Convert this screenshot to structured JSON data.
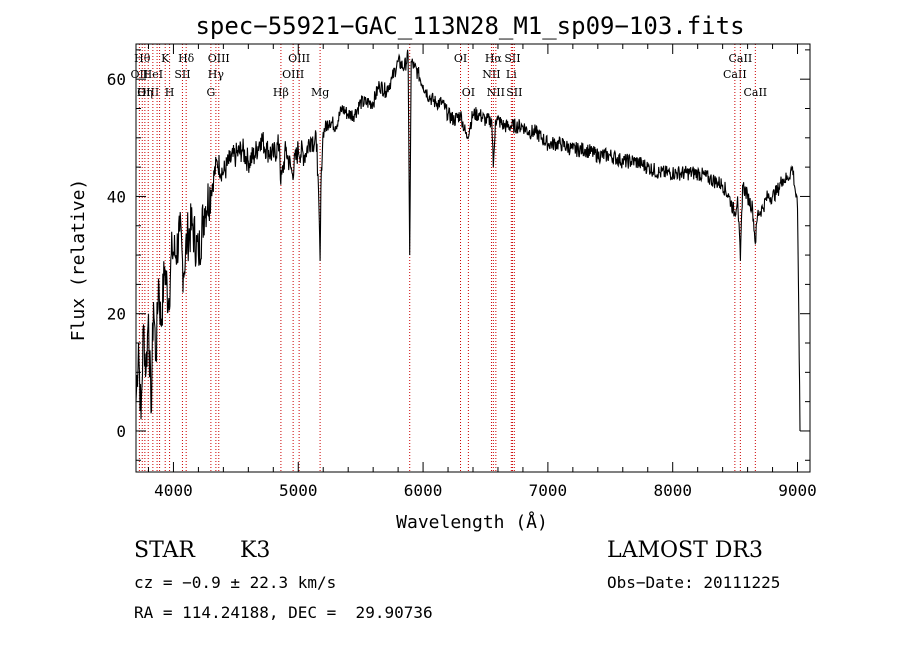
{
  "chart_data": {
    "type": "line",
    "title": "spec−55921−GAC_113N28_M1_sp09−103.fits",
    "xlabel": "Wavelength (Å)",
    "ylabel": "Flux (relative)",
    "xlim": [
      3700,
      9100
    ],
    "ylim": [
      -7,
      66
    ],
    "xticks": [
      4000,
      5000,
      6000,
      7000,
      8000,
      9000
    ],
    "yticks": [
      0,
      20,
      40,
      60
    ],
    "grid": false,
    "line_color": "#000000",
    "marker_color": "#cc0000",
    "series": [
      {
        "x": [
          3700,
          3720,
          3740,
          3760,
          3780,
          3800,
          3820,
          3840,
          3860,
          3880,
          3900,
          3930,
          3960,
          3990,
          4020,
          4050,
          4080,
          4110,
          4150,
          4200,
          4250,
          4300,
          4350,
          4400,
          4450,
          4500,
          4550,
          4600,
          4650,
          4700,
          4750,
          4800,
          4850,
          4860,
          4900,
          4950,
          5000,
          5050,
          5100,
          5150,
          5175,
          5185,
          5200,
          5250,
          5300,
          5350,
          5400,
          5450,
          5500,
          5550,
          5600,
          5650,
          5700,
          5750,
          5800,
          5850,
          5880,
          5893,
          5905,
          5930,
          5960,
          6000,
          6050,
          6100,
          6150,
          6200,
          6250,
          6300,
          6350,
          6400,
          6450,
          6500,
          6550,
          6563,
          6580,
          6600,
          6650,
          6700,
          6750,
          6800,
          6850,
          6900,
          6950,
          7000,
          7100,
          7200,
          7300,
          7400,
          7500,
          7600,
          7700,
          7800,
          7900,
          8000,
          8100,
          8200,
          8300,
          8400,
          8450,
          8498,
          8520,
          8542,
          8560,
          8600,
          8640,
          8662,
          8680,
          8720,
          8760,
          8800,
          8840,
          8880,
          8920,
          8960,
          9000,
          9010,
          9020
        ],
        "y": [
          5,
          15,
          2,
          18,
          10,
          20,
          3,
          22,
          12,
          26,
          18,
          28,
          22,
          31,
          30,
          34,
          27,
          33,
          35,
          30,
          38,
          41,
          46,
          44,
          46,
          47,
          48,
          46,
          47,
          50,
          48,
          47,
          49,
          42,
          48,
          44,
          48,
          47,
          50,
          49,
          29,
          45,
          51,
          53,
          52,
          55,
          54,
          54,
          56,
          56,
          56,
          59,
          58,
          60,
          63,
          62,
          64,
          30,
          63,
          62,
          61,
          59,
          57,
          56,
          56,
          54,
          53,
          54,
          50,
          54,
          54,
          53,
          53,
          45,
          53,
          53,
          52,
          52,
          52,
          52,
          51,
          51,
          50,
          49,
          49,
          48,
          48,
          47,
          47,
          46,
          46,
          45,
          44,
          44,
          44,
          44,
          43,
          42,
          40,
          37,
          40,
          29,
          42,
          40,
          38,
          32,
          37,
          38,
          40,
          40,
          41,
          43,
          43,
          45,
          38,
          20,
          0
        ]
      }
    ],
    "line_markers": [
      {
        "x": 3727,
        "label": "OII",
        "row": 1
      },
      {
        "x": 3750,
        "label": "Hθ",
        "row": 0
      },
      {
        "x": 3771,
        "label": "Hη",
        "row": 2
      },
      {
        "x": 3798,
        "label": "OIII",
        "row": 2
      },
      {
        "x": 3835,
        "label": "HeI",
        "row": 1
      },
      {
        "x": 3869,
        "label": "",
        "row": 0
      },
      {
        "x": 3889,
        "label": "",
        "row": 0
      },
      {
        "x": 3934,
        "label": "K",
        "row": 0
      },
      {
        "x": 3969,
        "label": "H",
        "row": 2
      },
      {
        "x": 4072,
        "label": "SII",
        "row": 1
      },
      {
        "x": 4102,
        "label": "Hδ",
        "row": 0
      },
      {
        "x": 4300,
        "label": "G",
        "row": 2
      },
      {
        "x": 4340,
        "label": "Hγ",
        "row": 1
      },
      {
        "x": 4363,
        "label": "OIII",
        "row": 0
      },
      {
        "x": 4861,
        "label": "Hβ",
        "row": 2
      },
      {
        "x": 4959,
        "label": "OIII",
        "row": 1
      },
      {
        "x": 5007,
        "label": "OIII",
        "row": 0
      },
      {
        "x": 5175,
        "label": "Mg",
        "row": 2
      },
      {
        "x": 5893,
        "label": "",
        "row": 0
      },
      {
        "x": 6300,
        "label": "OI",
        "row": 0
      },
      {
        "x": 6363,
        "label": "OI",
        "row": 2
      },
      {
        "x": 6548,
        "label": "NII",
        "row": 1
      },
      {
        "x": 6563,
        "label": "Hα",
        "row": 0
      },
      {
        "x": 6583,
        "label": "NII",
        "row": 2
      },
      {
        "x": 6707,
        "label": "Li",
        "row": 1
      },
      {
        "x": 6716,
        "label": "SII",
        "row": 0
      },
      {
        "x": 6731,
        "label": "SII",
        "row": 2
      },
      {
        "x": 8498,
        "label": "CaII",
        "row": 1
      },
      {
        "x": 8542,
        "label": "CaII",
        "row": 0
      },
      {
        "x": 8662,
        "label": "CaII",
        "row": 2
      }
    ]
  },
  "info": {
    "class_label": "STAR",
    "subclass": "K3",
    "survey": "LAMOST DR3",
    "cz": "cz = −0.9 ± 22.3 km/s",
    "obs_date": "Obs−Date: 20111225",
    "radec": "RA = 114.24188, DEC =  29.90736"
  }
}
